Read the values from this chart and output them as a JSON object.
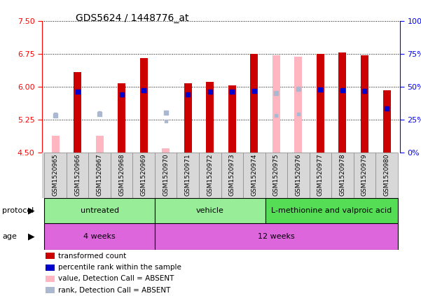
{
  "title": "GDS5624 / 1448776_at",
  "samples": [
    "GSM1520965",
    "GSM1520966",
    "GSM1520967",
    "GSM1520968",
    "GSM1520969",
    "GSM1520970",
    "GSM1520971",
    "GSM1520972",
    "GSM1520973",
    "GSM1520974",
    "GSM1520975",
    "GSM1520976",
    "GSM1520977",
    "GSM1520978",
    "GSM1520979",
    "GSM1520980"
  ],
  "values": [
    4.88,
    6.33,
    4.88,
    6.08,
    6.65,
    4.6,
    6.08,
    6.1,
    6.02,
    6.75,
    6.72,
    6.68,
    6.75,
    6.78,
    6.72,
    5.92
  ],
  "ranks": [
    5.35,
    5.88,
    5.38,
    5.82,
    5.92,
    5.4,
    5.82,
    5.88,
    5.88,
    5.9,
    5.85,
    5.95,
    5.93,
    5.92,
    5.9,
    5.5
  ],
  "absent": [
    true,
    false,
    true,
    false,
    false,
    true,
    false,
    false,
    false,
    false,
    true,
    true,
    false,
    false,
    false,
    false
  ],
  "rank_absent_vals": [
    5.38,
    0,
    5.4,
    0,
    0,
    5.22,
    0,
    0,
    0,
    0,
    5.35,
    5.38,
    0,
    0,
    0,
    0
  ],
  "ymin": 4.5,
  "ymax": 7.5,
  "y_ticks_left": [
    4.5,
    5.25,
    6.0,
    6.75,
    7.5
  ],
  "y_ticks_right_pct": [
    0,
    25,
    50,
    75,
    100
  ],
  "bar_color_present": "#cc0000",
  "bar_color_absent": "#ffb6c1",
  "rank_color_present": "#0000cc",
  "rank_color_absent": "#aab8d0",
  "baseline": 4.5,
  "protocol_spans": [
    {
      "label": "untreated",
      "start": 0,
      "end": 4,
      "color": "#98ee98"
    },
    {
      "label": "vehicle",
      "start": 5,
      "end": 9,
      "color": "#98ee98"
    },
    {
      "label": "L-methionine and valproic acid",
      "start": 10,
      "end": 15,
      "color": "#55dd55"
    }
  ],
  "age_spans": [
    {
      "label": "4 weeks",
      "start": 0,
      "end": 4,
      "color": "#dd66dd"
    },
    {
      "label": "12 weeks",
      "start": 5,
      "end": 15,
      "color": "#dd66dd"
    }
  ],
  "legend_items": [
    {
      "color": "#cc0000",
      "label": "transformed count"
    },
    {
      "color": "#0000cc",
      "label": "percentile rank within the sample"
    },
    {
      "color": "#ffb6c1",
      "label": "value, Detection Call = ABSENT"
    },
    {
      "color": "#aab8d0",
      "label": "rank, Detection Call = ABSENT"
    }
  ]
}
